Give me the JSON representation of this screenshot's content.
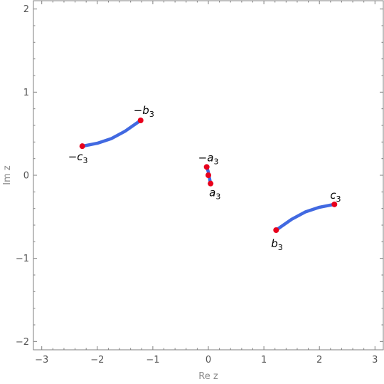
{
  "chart_data": {
    "type": "line",
    "title": "",
    "xlabel": "Re z",
    "ylabel": "Im z",
    "xlim": [
      -3.15,
      3.15
    ],
    "ylim": [
      -2.1,
      2.1
    ],
    "grid": false,
    "x_ticks": [
      -3,
      -2,
      -1,
      0,
      1,
      2,
      3
    ],
    "y_ticks": [
      -2,
      -1,
      0,
      1,
      2
    ],
    "x_tick_labels": [
      "−3",
      "−2",
      "−1",
      "0",
      "1",
      "2",
      "3"
    ],
    "y_tick_labels": [
      "−2",
      "−1",
      "0",
      "1",
      "2"
    ],
    "line_color": "#4169e1",
    "point_color": "#e8001c",
    "series": [
      {
        "x": [
          -2.27,
          -2.0,
          -1.75,
          -1.5,
          -1.22
        ],
        "y": [
          0.35,
          0.385,
          0.44,
          0.53,
          0.66
        ]
      },
      {
        "x": [
          -0.03,
          -0.005,
          0.01,
          0.025,
          0.04
        ],
        "y": [
          0.1,
          0.05,
          0.0,
          -0.05,
          -0.1
        ]
      },
      {
        "x": [
          1.22,
          1.5,
          1.75,
          2.0,
          2.27
        ],
        "y": [
          -0.66,
          -0.53,
          -0.44,
          -0.385,
          -0.35
        ]
      }
    ],
    "points": [
      {
        "x": -2.27,
        "y": 0.35,
        "label_sign": "−",
        "label_letter": "c",
        "label_sub": "3"
      },
      {
        "x": -1.22,
        "y": 0.66,
        "label_sign": "−",
        "label_letter": "b",
        "label_sub": "3"
      },
      {
        "x": -0.03,
        "y": 0.1,
        "label_sign": "−",
        "label_letter": "a",
        "label_sub": "3"
      },
      {
        "x": 0.0,
        "y": 0.0,
        "label_sign": "",
        "label_letter": "",
        "label_sub": ""
      },
      {
        "x": 0.04,
        "y": -0.1,
        "label_sign": "",
        "label_letter": "a",
        "label_sub": "3"
      },
      {
        "x": 1.22,
        "y": -0.66,
        "label_sign": "",
        "label_letter": "b",
        "label_sub": "3"
      },
      {
        "x": 2.27,
        "y": -0.35,
        "label_sign": "",
        "label_letter": "c",
        "label_sub": "3"
      }
    ]
  }
}
